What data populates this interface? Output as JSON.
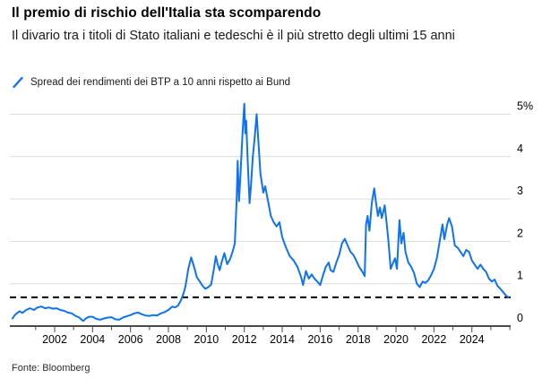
{
  "header": {
    "title": "Il premio di rischio dell'Italia sta scomparendo",
    "subtitle": "Il divario tra i titoli di Stato italiani e tedeschi è il più stretto degli ultimi 15 anni"
  },
  "legend": {
    "label": "Spread dei rendimenti dei BTP a 10 anni rispetto ai Bund",
    "series_color": "#0d73f2"
  },
  "footer": {
    "source": "Fonte: Bloomberg"
  },
  "colors": {
    "line": "#0d73f2",
    "gridline": "#dcdcdc",
    "axis": "#4a4a4a",
    "reference_dash": "#000000",
    "tick": "#4a4a4a",
    "label": "#000000"
  },
  "chart_data": {
    "type": "line",
    "title": "Il premio di rischio dell'Italia sta scomparendo",
    "subtitle": "Il divario tra i titoli di Stato italiani e tedeschi è il più stretto degli ultimi 15 anni",
    "ylabel": "",
    "xlabel": "",
    "y_unit": "%",
    "xlim": [
      1999.7,
      2026.1
    ],
    "ylim": [
      0,
      5.3
    ],
    "yticks": [
      0,
      1,
      2,
      3,
      4,
      5
    ],
    "ytick_labels": [
      "0",
      "1",
      "2",
      "3",
      "4",
      "5%"
    ],
    "xtick_minor_years": [
      2001,
      2002,
      2003,
      2004,
      2005,
      2006,
      2007,
      2008,
      2009,
      2010,
      2011,
      2012,
      2013,
      2014,
      2015,
      2016,
      2017,
      2018,
      2019,
      2020,
      2021,
      2022,
      2023,
      2024,
      2025,
      2026
    ],
    "xtick_labeled_years": [
      2002,
      2004,
      2006,
      2008,
      2010,
      2012,
      2014,
      2016,
      2018,
      2020,
      2022,
      2024
    ],
    "grid": "horizontal",
    "legend_position": "top-left",
    "reference_line": {
      "style": "dashed",
      "value": 0.68
    },
    "series": [
      {
        "name": "Spread dei rendimenti dei BTP a 10 anni rispetto ai Bund",
        "color": "#0d73f2",
        "points": [
          [
            1999.78,
            0.18
          ],
          [
            1999.9,
            0.26
          ],
          [
            2000.0,
            0.3
          ],
          [
            2000.15,
            0.35
          ],
          [
            2000.3,
            0.31
          ],
          [
            2000.5,
            0.38
          ],
          [
            2000.7,
            0.42
          ],
          [
            2000.9,
            0.38
          ],
          [
            2001.1,
            0.44
          ],
          [
            2001.3,
            0.46
          ],
          [
            2001.5,
            0.42
          ],
          [
            2001.7,
            0.44
          ],
          [
            2001.9,
            0.41
          ],
          [
            2002.1,
            0.42
          ],
          [
            2002.3,
            0.38
          ],
          [
            2002.5,
            0.36
          ],
          [
            2002.7,
            0.32
          ],
          [
            2002.9,
            0.3
          ],
          [
            2003.1,
            0.24
          ],
          [
            2003.3,
            0.2
          ],
          [
            2003.5,
            0.12
          ],
          [
            2003.65,
            0.18
          ],
          [
            2003.8,
            0.22
          ],
          [
            2004.0,
            0.22
          ],
          [
            2004.2,
            0.17
          ],
          [
            2004.4,
            0.15
          ],
          [
            2004.6,
            0.18
          ],
          [
            2004.8,
            0.2
          ],
          [
            2005.0,
            0.21
          ],
          [
            2005.2,
            0.16
          ],
          [
            2005.4,
            0.15
          ],
          [
            2005.6,
            0.2
          ],
          [
            2005.8,
            0.23
          ],
          [
            2006.0,
            0.26
          ],
          [
            2006.2,
            0.3
          ],
          [
            2006.4,
            0.32
          ],
          [
            2006.6,
            0.28
          ],
          [
            2006.8,
            0.25
          ],
          [
            2007.0,
            0.24
          ],
          [
            2007.2,
            0.26
          ],
          [
            2007.4,
            0.25
          ],
          [
            2007.6,
            0.3
          ],
          [
            2007.8,
            0.33
          ],
          [
            2008.0,
            0.38
          ],
          [
            2008.2,
            0.46
          ],
          [
            2008.35,
            0.44
          ],
          [
            2008.5,
            0.48
          ],
          [
            2008.65,
            0.6
          ],
          [
            2008.8,
            0.78
          ],
          [
            2008.9,
            0.95
          ],
          [
            2009.05,
            1.35
          ],
          [
            2009.2,
            1.62
          ],
          [
            2009.35,
            1.4
          ],
          [
            2009.5,
            1.15
          ],
          [
            2009.65,
            1.05
          ],
          [
            2009.8,
            0.95
          ],
          [
            2009.95,
            0.88
          ],
          [
            2010.1,
            0.92
          ],
          [
            2010.25,
            0.98
          ],
          [
            2010.4,
            1.35
          ],
          [
            2010.5,
            1.65
          ],
          [
            2010.6,
            1.45
          ],
          [
            2010.7,
            1.32
          ],
          [
            2010.8,
            1.5
          ],
          [
            2010.95,
            1.72
          ],
          [
            2011.1,
            1.46
          ],
          [
            2011.25,
            1.58
          ],
          [
            2011.4,
            1.78
          ],
          [
            2011.5,
            1.95
          ],
          [
            2011.6,
            3.0
          ],
          [
            2011.65,
            3.9
          ],
          [
            2011.72,
            2.95
          ],
          [
            2011.8,
            3.6
          ],
          [
            2011.9,
            4.5
          ],
          [
            2012.0,
            5.25
          ],
          [
            2012.05,
            4.55
          ],
          [
            2012.1,
            4.85
          ],
          [
            2012.18,
            3.9
          ],
          [
            2012.28,
            2.9
          ],
          [
            2012.35,
            3.3
          ],
          [
            2012.45,
            4.0
          ],
          [
            2012.55,
            4.45
          ],
          [
            2012.65,
            5.0
          ],
          [
            2012.75,
            4.3
          ],
          [
            2012.85,
            3.6
          ],
          [
            2013.0,
            3.15
          ],
          [
            2013.1,
            3.3
          ],
          [
            2013.25,
            2.95
          ],
          [
            2013.4,
            2.6
          ],
          [
            2013.55,
            2.45
          ],
          [
            2013.7,
            2.35
          ],
          [
            2013.85,
            2.45
          ],
          [
            2014.0,
            2.1
          ],
          [
            2014.2,
            1.85
          ],
          [
            2014.4,
            1.65
          ],
          [
            2014.6,
            1.55
          ],
          [
            2014.8,
            1.4
          ],
          [
            2015.0,
            1.15
          ],
          [
            2015.1,
            0.97
          ],
          [
            2015.25,
            1.3
          ],
          [
            2015.4,
            1.12
          ],
          [
            2015.55,
            1.22
          ],
          [
            2015.7,
            1.12
          ],
          [
            2015.85,
            1.05
          ],
          [
            2016.0,
            0.97
          ],
          [
            2016.15,
            1.2
          ],
          [
            2016.3,
            1.4
          ],
          [
            2016.45,
            1.5
          ],
          [
            2016.55,
            1.32
          ],
          [
            2016.7,
            1.28
          ],
          [
            2016.85,
            1.5
          ],
          [
            2017.0,
            1.68
          ],
          [
            2017.15,
            1.95
          ],
          [
            2017.3,
            2.06
          ],
          [
            2017.45,
            1.9
          ],
          [
            2017.6,
            1.75
          ],
          [
            2017.75,
            1.68
          ],
          [
            2017.9,
            1.55
          ],
          [
            2018.05,
            1.4
          ],
          [
            2018.2,
            1.3
          ],
          [
            2018.35,
            1.18
          ],
          [
            2018.42,
            2.4
          ],
          [
            2018.5,
            2.6
          ],
          [
            2018.6,
            2.25
          ],
          [
            2018.72,
            2.9
          ],
          [
            2018.85,
            3.25
          ],
          [
            2018.95,
            2.9
          ],
          [
            2019.05,
            2.6
          ],
          [
            2019.15,
            2.8
          ],
          [
            2019.25,
            2.55
          ],
          [
            2019.4,
            2.85
          ],
          [
            2019.5,
            2.45
          ],
          [
            2019.6,
            2.0
          ],
          [
            2019.72,
            1.35
          ],
          [
            2019.85,
            1.5
          ],
          [
            2019.95,
            1.6
          ],
          [
            2020.05,
            1.35
          ],
          [
            2020.18,
            2.5
          ],
          [
            2020.28,
            1.95
          ],
          [
            2020.4,
            2.2
          ],
          [
            2020.5,
            1.75
          ],
          [
            2020.65,
            1.5
          ],
          [
            2020.8,
            1.4
          ],
          [
            2020.95,
            1.25
          ],
          [
            2021.1,
            1.0
          ],
          [
            2021.25,
            0.92
          ],
          [
            2021.4,
            1.05
          ],
          [
            2021.55,
            1.02
          ],
          [
            2021.7,
            1.08
          ],
          [
            2021.85,
            1.2
          ],
          [
            2022.0,
            1.35
          ],
          [
            2022.15,
            1.6
          ],
          [
            2022.3,
            2.0
          ],
          [
            2022.45,
            2.4
          ],
          [
            2022.55,
            2.05
          ],
          [
            2022.7,
            2.4
          ],
          [
            2022.8,
            2.55
          ],
          [
            2022.95,
            2.35
          ],
          [
            2023.1,
            1.9
          ],
          [
            2023.25,
            1.85
          ],
          [
            2023.4,
            1.75
          ],
          [
            2023.55,
            1.65
          ],
          [
            2023.7,
            1.8
          ],
          [
            2023.85,
            1.75
          ],
          [
            2024.0,
            1.55
          ],
          [
            2024.15,
            1.45
          ],
          [
            2024.3,
            1.35
          ],
          [
            2024.45,
            1.45
          ],
          [
            2024.6,
            1.35
          ],
          [
            2024.75,
            1.28
          ],
          [
            2024.9,
            1.12
          ],
          [
            2025.05,
            1.05
          ],
          [
            2025.2,
            1.1
          ],
          [
            2025.35,
            0.95
          ],
          [
            2025.5,
            0.88
          ],
          [
            2025.65,
            0.8
          ],
          [
            2025.8,
            0.72
          ],
          [
            2025.92,
            0.68
          ]
        ]
      }
    ]
  }
}
